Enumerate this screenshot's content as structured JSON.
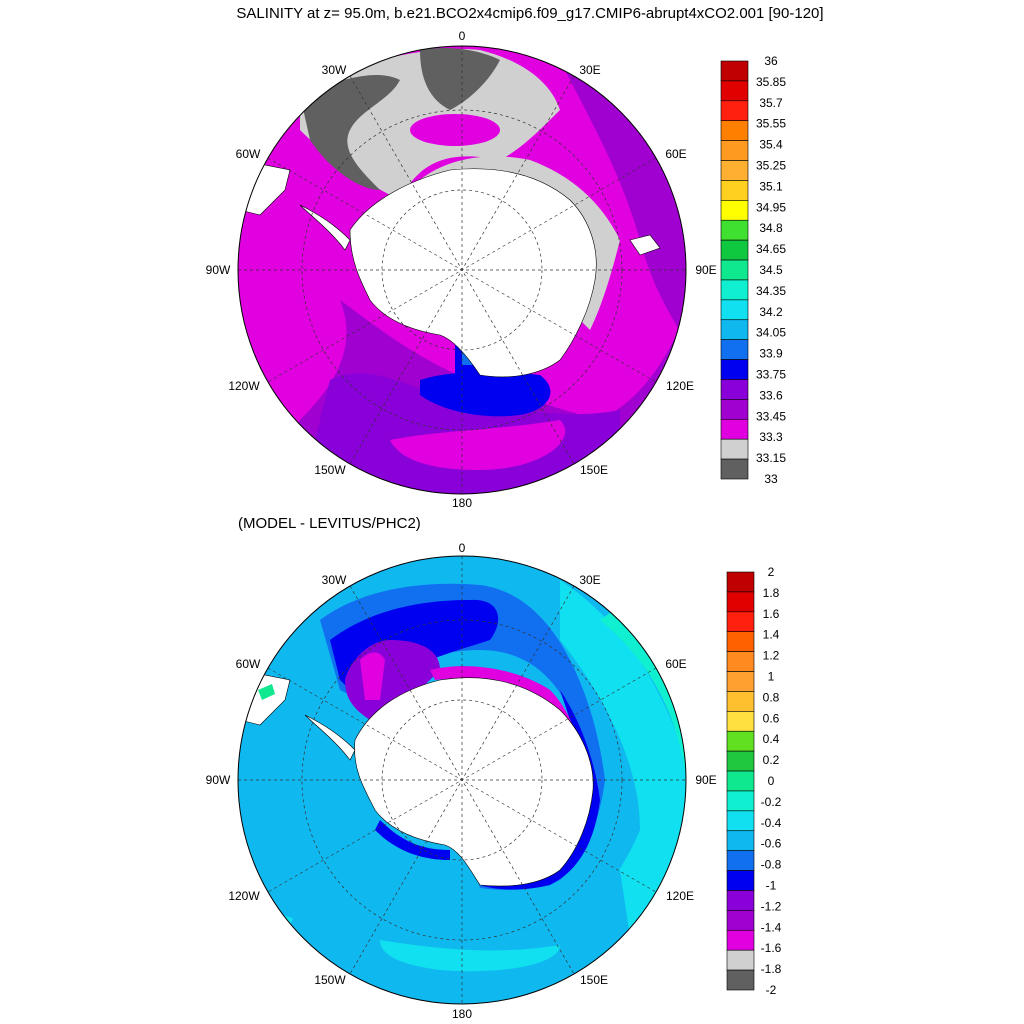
{
  "top_panel": {
    "title": "SALINITY at z=  95.0m, b.e21.BCO2x4cmip6.f09_g17.CMIP6-abrupt4xCO2.001 [90-120]",
    "lon_labels": [
      "0",
      "30E",
      "60E",
      "90E",
      "120E",
      "150E",
      "180",
      "150W",
      "120W",
      "90W",
      "60W",
      "30W"
    ],
    "colorbar": {
      "labels": [
        "36",
        "35.85",
        "35.7",
        "35.55",
        "35.4",
        "35.25",
        "35.1",
        "34.95",
        "34.8",
        "34.65",
        "34.5",
        "34.35",
        "34.2",
        "34.05",
        "33.9",
        "33.75",
        "33.6",
        "33.45",
        "33.3",
        "33.15",
        "33"
      ],
      "colors": [
        "#c00000",
        "#e00000",
        "#ff2010",
        "#ff8000",
        "#ff9a20",
        "#ffb030",
        "#ffd020",
        "#ffff00",
        "#40e030",
        "#10c840",
        "#10e890",
        "#10f0d0",
        "#10e0f0",
        "#10b8f0",
        "#1070f0",
        "#0000f0",
        "#8a00d8",
        "#a000d0",
        "#e000e0",
        "#d0d0d0",
        "#606060"
      ]
    }
  },
  "bottom_panel": {
    "title": "(MODEL - LEVITUS/PHC2)",
    "lon_labels": [
      "0",
      "30E",
      "60E",
      "90E",
      "120E",
      "150E",
      "180",
      "150W",
      "120W",
      "90W",
      "60W",
      "30W"
    ],
    "colorbar": {
      "labels": [
        "2",
        "1.8",
        "1.6",
        "1.4",
        "1.2",
        "1",
        "0.8",
        "0.6",
        "0.4",
        "0.2",
        "0",
        "-0.2",
        "-0.4",
        "-0.6",
        "-0.8",
        "-1",
        "-1.2",
        "-1.4",
        "-1.6",
        "-1.8",
        "-2"
      ],
      "colors": [
        "#c00000",
        "#e00000",
        "#ff2010",
        "#ff6000",
        "#ff8a20",
        "#ffa030",
        "#ffc030",
        "#ffe040",
        "#60e020",
        "#20c840",
        "#10e890",
        "#10f0d0",
        "#10e0f0",
        "#10b8f0",
        "#1070f0",
        "#0000f0",
        "#8a00d8",
        "#a000d0",
        "#e000e0",
        "#d0d0d0",
        "#606060"
      ]
    }
  }
}
